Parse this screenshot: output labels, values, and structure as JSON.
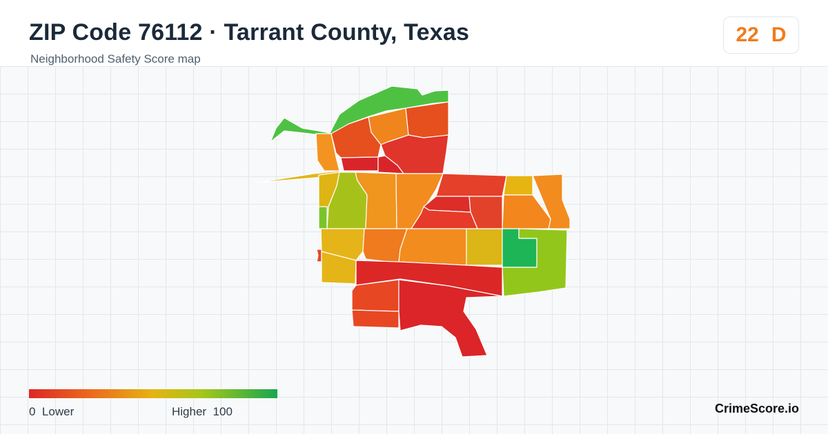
{
  "header": {
    "title": "ZIP Code 76112 · Tarrant County, Texas",
    "subtitle": "Neighborhood Safety Score map"
  },
  "score_badge": {
    "score": "22",
    "grade": "D",
    "color": "#f07c1c"
  },
  "legend": {
    "low_value": "0",
    "low_label": "Lower",
    "high_label": "Higher",
    "high_value": "100",
    "colors": [
      "#dc2727",
      "#ec6a1d",
      "#e4b412",
      "#a4c61a",
      "#17a750"
    ]
  },
  "brand": "CrimeScore.io"
}
